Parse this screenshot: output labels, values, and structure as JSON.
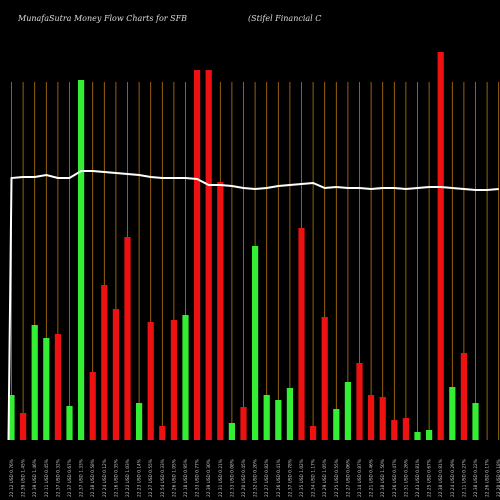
{
  "header": {
    "title": "MunafaSutra  Money Flow  Charts for SFB",
    "company": "(Stifel Financial C"
  },
  "colors": {
    "background": "#000000",
    "up": "#33ee33",
    "down": "#ee1111",
    "gridline": "#b87a10",
    "line": "#ffffff"
  },
  "chart_data": {
    "type": "bar",
    "title": "MunafaSutra  Money Flow  Charts for SFB",
    "subtitle": "(Stifel Financial C",
    "grid": true,
    "categories": [
      "22.12 USD 0.76%",
      "22.39 USD 1.45%",
      "22.39 USD 1.46%",
      "22.11 USD 0.45%",
      "22.37 USD 0.32%",
      "22.37 USD 0.67%",
      "22.37 USD 1.33%",
      "22.38 USD 0.58%",
      "22.24 USD 0.12%",
      "22.16 USD 0.35%",
      "22.22 USD 1.03%",
      "22.23 USD 0.14%",
      "22.27 USD 0.55%",
      "22.54 USD 0.33%",
      "22.26 USD 1.05%",
      "22.18 USD 0.95%",
      "22.33 USD 0.77%",
      "22.39 USD 0.30%",
      "22.31 USD 0.21%",
      "22.33 USD 0.08%",
      "22.20 USD 0.45%",
      "22.32 USD 0.20%",
      "22.27 USD 0.82%",
      "22.26 USD 0.41%",
      "22.37 USD 0.78%",
      "22.35 USD 1.02%",
      "22.34 USD 1.17%",
      "22.29 USD 1.05%",
      "22.25 USD 0.55%",
      "22.27 USD 0.06%",
      "22.14 USD 0.87%",
      "22.21 USD 0.46%",
      "22.38 USD 1.50%",
      "22.26 USD 0.47%",
      "22.31 USD 0.26%",
      "22.43 USD 0.81%",
      "22.25 USD 0.67%",
      "22.38 USD 0.81%",
      "22.24 USD 0.29%",
      "22.11 USD 0.27%",
      "22.38 USD 0.22%",
      "22.26 USD 0.17%",
      "22.20 USD 0.18%"
    ],
    "series": [
      {
        "type": "bar",
        "values": [
          45,
          27,
          115,
          102,
          106,
          34,
          360,
          68,
          155,
          131,
          203,
          37,
          118,
          14,
          120,
          125,
          370,
          370,
          258,
          17,
          33,
          194,
          45,
          40,
          52,
          212,
          14,
          123,
          31,
          58,
          77,
          45,
          43,
          20,
          22,
          8,
          10,
          388,
          53,
          87,
          37,
          0,
          0
        ],
        "directions": [
          "up",
          "down",
          "up",
          "up",
          "down",
          "up",
          "up",
          "down",
          "down",
          "down",
          "down",
          "up",
          "down",
          "down",
          "down",
          "up",
          "down",
          "down",
          "down",
          "up",
          "down",
          "up",
          "up",
          "up",
          "up",
          "down",
          "down",
          "down",
          "up",
          "up",
          "down",
          "down",
          "down",
          "down",
          "down",
          "up",
          "up",
          "down",
          "up",
          "down",
          "up",
          "up",
          "up"
        ]
      },
      {
        "type": "line",
        "values": [
          262,
          263,
          263,
          265,
          262,
          262,
          269,
          269,
          268,
          267,
          266,
          265,
          263,
          262,
          262,
          262,
          261,
          255,
          255,
          254,
          252,
          251,
          252,
          254,
          255,
          256,
          257,
          252,
          253,
          252,
          252,
          251,
          252,
          252,
          251,
          252,
          253,
          253,
          252,
          251,
          250,
          250,
          251
        ]
      }
    ]
  }
}
